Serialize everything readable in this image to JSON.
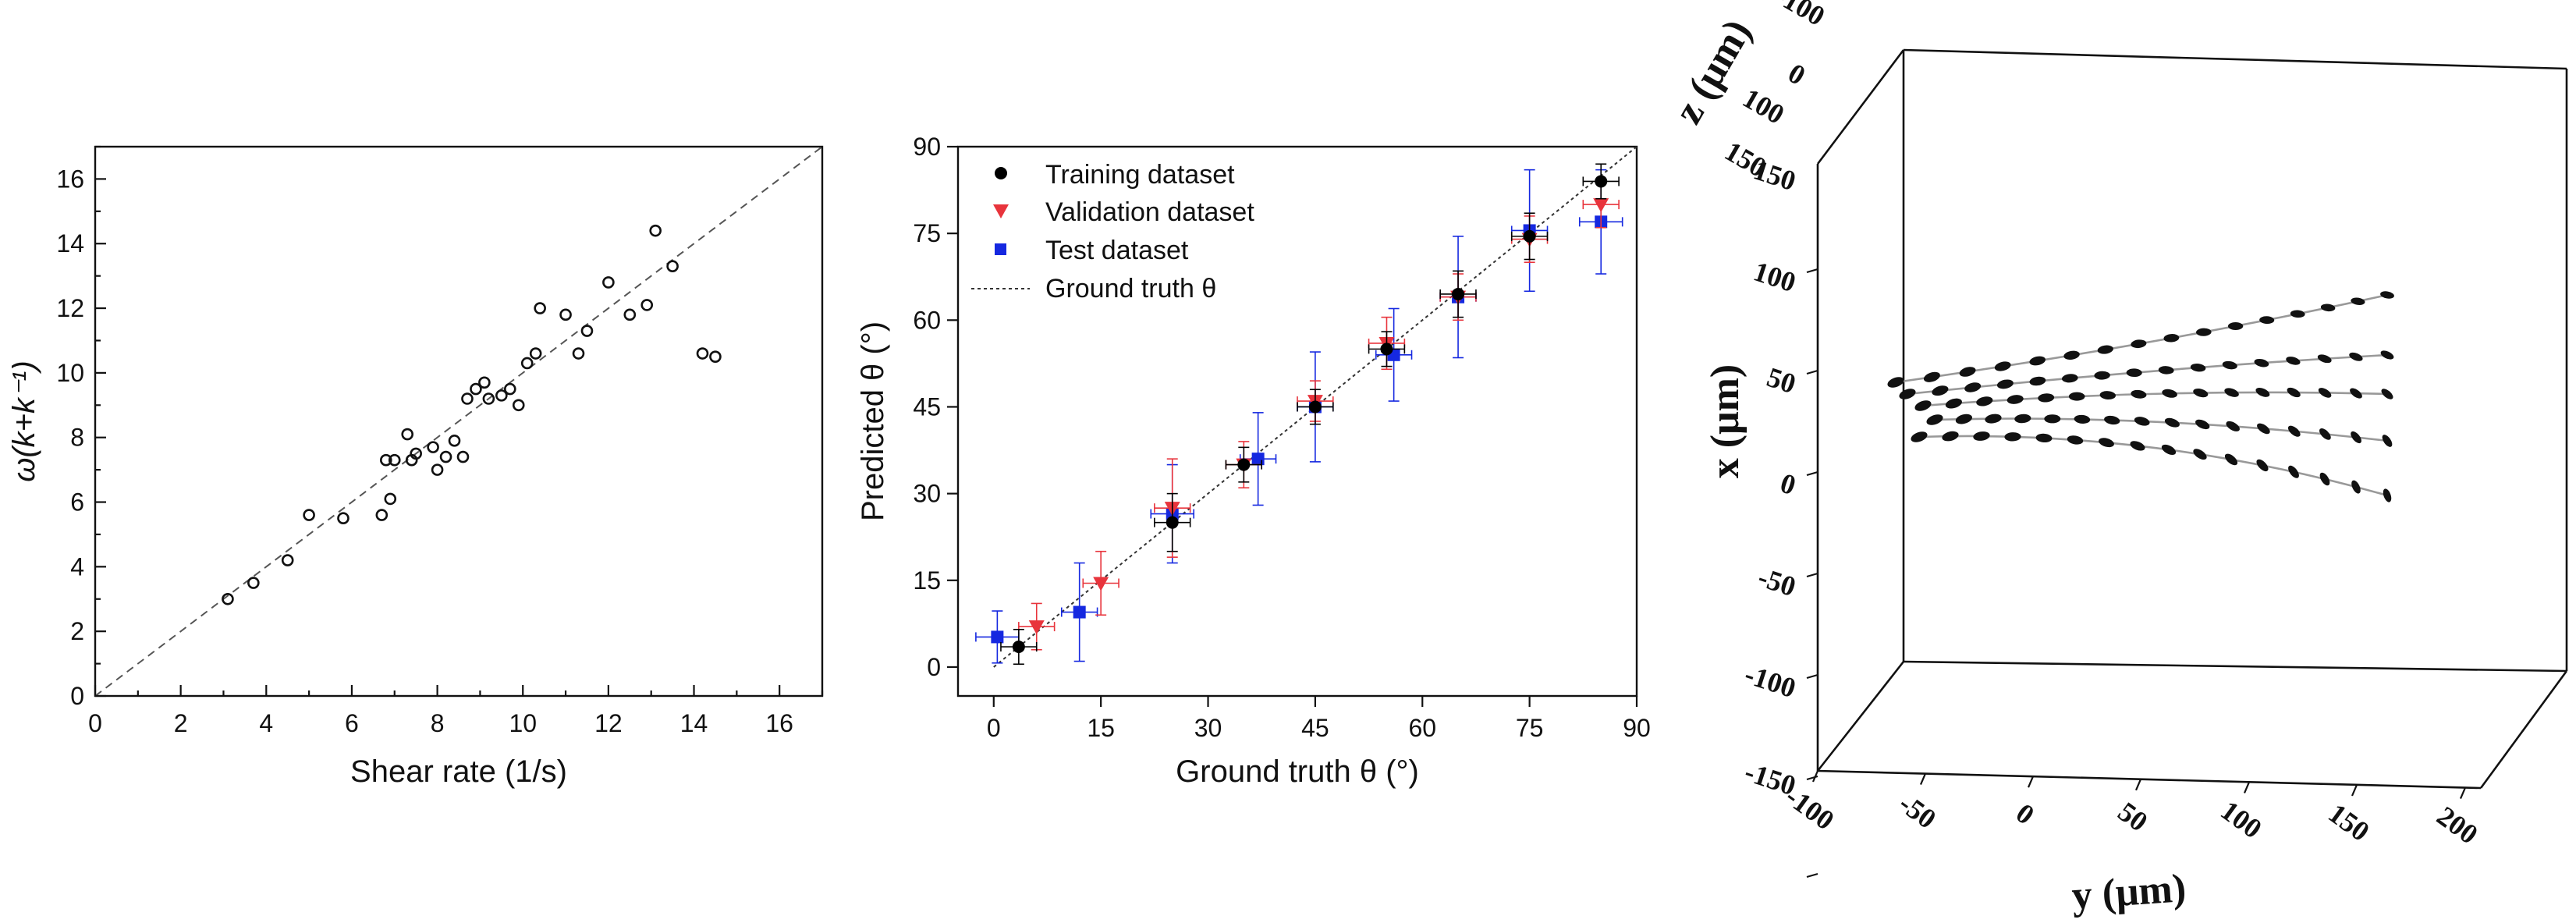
{
  "chart_data": [
    {
      "type": "scatter",
      "title": "",
      "xlabel": "Shear rate (1/s)",
      "ylabel": "ω(k+k⁻¹)",
      "xlim": [
        0,
        17
      ],
      "ylim": [
        0,
        17
      ],
      "x_ticks": [
        "0",
        "2",
        "4",
        "6",
        "8",
        "10",
        "12",
        "14",
        "16"
      ],
      "y_ticks": [
        "0",
        "2",
        "4",
        "6",
        "8",
        "10",
        "12",
        "14",
        "16"
      ],
      "series": [
        {
          "marker": "open-circle",
          "x": [
            3.1,
            3.7,
            4.5,
            5.0,
            5.8,
            6.7,
            6.8,
            6.9,
            7.0,
            7.3,
            7.4,
            7.5,
            7.9,
            8.0,
            8.2,
            8.4,
            8.6,
            8.7,
            8.9,
            9.1,
            9.2,
            9.5,
            9.7,
            9.9,
            10.1,
            10.3,
            10.4,
            11.0,
            11.3,
            11.5,
            12.0,
            12.5,
            12.9,
            13.1,
            13.5,
            14.2,
            14.5
          ],
          "y": [
            3.0,
            3.5,
            4.2,
            5.6,
            5.5,
            5.6,
            7.3,
            6.1,
            7.3,
            8.1,
            7.3,
            7.5,
            7.7,
            7.0,
            7.4,
            7.9,
            7.4,
            9.2,
            9.5,
            9.7,
            9.2,
            9.3,
            9.5,
            9.0,
            10.3,
            10.6,
            12.0,
            11.8,
            10.6,
            11.3,
            12.8,
            11.8,
            12.1,
            14.4,
            13.3,
            10.6,
            10.5
          ]
        }
      ],
      "reference_line": {
        "label": "y = x",
        "style": "dashed"
      },
      "grid": false
    },
    {
      "type": "scatter",
      "title": "",
      "xlabel": "Ground truth θ (°)",
      "ylabel": "Predicted θ (°)",
      "xlim": [
        -5,
        90
      ],
      "ylim": [
        -5,
        90
      ],
      "x_ticks": [
        "0",
        "15",
        "30",
        "45",
        "60",
        "75",
        "90"
      ],
      "y_ticks": [
        "0",
        "15",
        "30",
        "45",
        "60",
        "75",
        "90"
      ],
      "legend_position": "top-left",
      "series": [
        {
          "name": "Training dataset",
          "marker": "circle",
          "color": "#000000",
          "points": [
            {
              "x": 3.5,
              "y": 3.5,
              "xerr": 2.5,
              "yerr": 3.0
            },
            {
              "x": 25,
              "y": 25,
              "xerr": 2.5,
              "yerr": 5
            },
            {
              "x": 35,
              "y": 35,
              "xerr": 2.5,
              "yerr": 3
            },
            {
              "x": 45,
              "y": 45,
              "xerr": 2.5,
              "yerr": 3
            },
            {
              "x": 55,
              "y": 55,
              "xerr": 2.5,
              "yerr": 3
            },
            {
              "x": 65,
              "y": 64.5,
              "xerr": 2.5,
              "yerr": 4
            },
            {
              "x": 75,
              "y": 74.5,
              "xerr": 2.5,
              "yerr": 4
            },
            {
              "x": 85,
              "y": 84,
              "xerr": 2.5,
              "yerr": 3
            }
          ]
        },
        {
          "name": "Validation dataset",
          "marker": "triangle-down",
          "color": "#e8343c",
          "points": [
            {
              "x": 6,
              "y": 7,
              "xerr": 2.5,
              "yerr": 4
            },
            {
              "x": 15,
              "y": 14.5,
              "xerr": 2.5,
              "yerr": 5.5
            },
            {
              "x": 25,
              "y": 27.5,
              "xerr": 2.5,
              "yerr": 8.5
            },
            {
              "x": 35,
              "y": 35,
              "xerr": 2.5,
              "yerr": 4
            },
            {
              "x": 45,
              "y": 46,
              "xerr": 2.5,
              "yerr": 3.5
            },
            {
              "x": 55,
              "y": 56,
              "xerr": 2.5,
              "yerr": 4.5
            },
            {
              "x": 65,
              "y": 64,
              "xerr": 2.5,
              "yerr": 4
            },
            {
              "x": 75,
              "y": 74,
              "xerr": 2.5,
              "yerr": 4
            },
            {
              "x": 85,
              "y": 80,
              "xerr": 2.5,
              "yerr": 4
            }
          ]
        },
        {
          "name": "Test dataset",
          "marker": "square",
          "color": "#1528e0",
          "points": [
            {
              "x": 0.5,
              "y": 5.2,
              "xerr": 3,
              "yerr": 4.5
            },
            {
              "x": 12,
              "y": 9.5,
              "xerr": 2.5,
              "yerr": 8.5
            },
            {
              "x": 25,
              "y": 26.5,
              "xerr": 3,
              "yerr": 8.5
            },
            {
              "x": 37,
              "y": 36,
              "xerr": 2.5,
              "yerr": 8
            },
            {
              "x": 45,
              "y": 45,
              "xerr": 2.5,
              "yerr": 9.5
            },
            {
              "x": 56,
              "y": 54,
              "xerr": 2.5,
              "yerr": 8
            },
            {
              "x": 65,
              "y": 64,
              "xerr": 2.5,
              "yerr": 10.5
            },
            {
              "x": 75,
              "y": 75.5,
              "xerr": 2.5,
              "yerr": 10.5
            },
            {
              "x": 85,
              "y": 77,
              "xerr": 3,
              "yerr": 9
            }
          ]
        }
      ],
      "reference_line": {
        "name": "Ground truth θ",
        "style": "dotted"
      },
      "grid": false
    },
    {
      "type": "scatter",
      "title": "",
      "xlabel": "x (μm)",
      "ylabel": "y (μm)",
      "zlabel": "z (μm)",
      "x_ticks": [
        "150",
        "100",
        "50",
        "0",
        "-50",
        "-100",
        "-150"
      ],
      "y_ticks": [
        "-100",
        "-50",
        "0",
        "50",
        "100",
        "150",
        "200"
      ],
      "z_ticks": [
        "-100",
        "0",
        "100",
        "150"
      ],
      "trajectories_count": 5,
      "marker": "black ellipsoids along gray trajectory lines",
      "grid": false
    }
  ],
  "colors": {
    "training": "#000000",
    "validation": "#e8343c",
    "test": "#1528e0"
  }
}
